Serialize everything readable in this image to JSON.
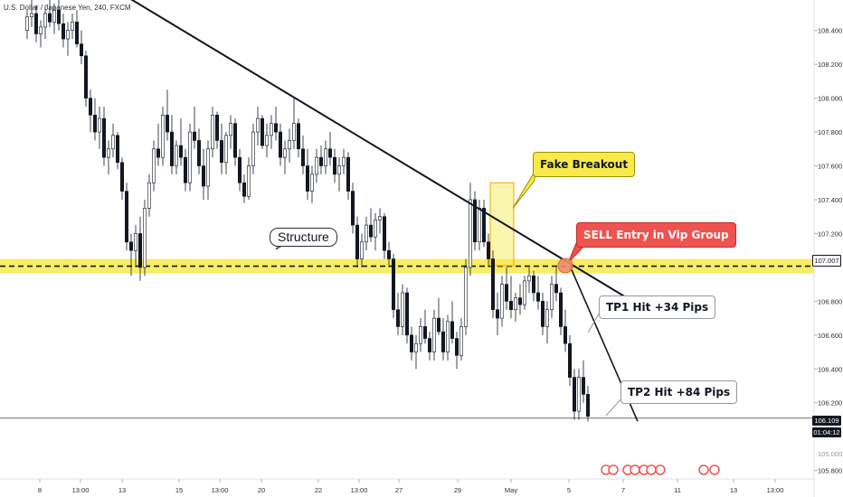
{
  "symbol_title": "U.S. Dollar / Japanese Yen, 240, FXCM",
  "chart_data": {
    "type": "candlestick",
    "ylim": [
      105.75,
      108.58
    ],
    "y_ticks": [
      "108.400",
      "108.200",
      "108.000",
      "107.800",
      "107.600",
      "107.400",
      "107.200",
      "106.800",
      "106.600",
      "106.400",
      "106.200",
      "105.800"
    ],
    "x_ticks": [
      "8",
      "13:00",
      "13",
      "15",
      "13:00",
      "20",
      "22",
      "13:00",
      "27",
      "29",
      "May",
      "5",
      "7",
      "11",
      "13",
      "13:00"
    ],
    "current_price": "106.109",
    "countdown": "01:04:12",
    "partial_price_label": "105.000",
    "structure_level": {
      "price": "107.007",
      "label": "Structure",
      "color": "#f7ea4a"
    },
    "fake_breakout_zone": {
      "label": "Fake Breakout",
      "from_price": 107.01,
      "to_price": 107.5
    },
    "trendline": {
      "from": {
        "bar": 22,
        "price": 108.6
      },
      "to": {
        "bar": 132,
        "price": 106.83
      }
    },
    "tp_line": {
      "from": {
        "bar": 120,
        "price": 107.01
      },
      "to": {
        "bar": 135,
        "price": 106.09
      }
    },
    "sell_entry": {
      "bar": 119,
      "price": 107.01,
      "label": "SELL Entry in Vip Group"
    },
    "tp1": {
      "label": "TP1 Hit +34 Pips",
      "price": 106.67
    },
    "tp2": {
      "label": "TP2 Hit +84 Pips",
      "price": 106.17
    },
    "candles": [
      [
        108.4,
        108.52,
        108.35,
        108.48
      ],
      [
        108.48,
        108.58,
        108.42,
        108.5
      ],
      [
        108.5,
        108.55,
        108.33,
        108.38
      ],
      [
        108.38,
        108.46,
        108.3,
        108.42
      ],
      [
        108.42,
        108.55,
        108.35,
        108.5
      ],
      [
        108.5,
        108.58,
        108.42,
        108.45
      ],
      [
        108.45,
        108.56,
        108.38,
        108.52
      ],
      [
        108.52,
        108.58,
        108.4,
        108.44
      ],
      [
        108.44,
        108.5,
        108.3,
        108.35
      ],
      [
        108.35,
        108.45,
        108.25,
        108.4
      ],
      [
        108.4,
        108.5,
        108.35,
        108.45
      ],
      [
        108.45,
        108.52,
        108.3,
        108.32
      ],
      [
        108.32,
        108.4,
        108.2,
        108.25
      ],
      [
        108.25,
        108.28,
        107.95,
        108.0
      ],
      [
        108.0,
        108.05,
        107.8,
        107.9
      ],
      [
        107.9,
        108.0,
        107.75,
        107.8
      ],
      [
        107.8,
        107.95,
        107.7,
        107.88
      ],
      [
        107.88,
        107.95,
        107.6,
        107.65
      ],
      [
        107.65,
        107.75,
        107.55,
        107.7
      ],
      [
        107.7,
        107.85,
        107.65,
        107.78
      ],
      [
        107.78,
        107.8,
        107.58,
        107.62
      ],
      [
        107.62,
        107.65,
        107.4,
        107.45
      ],
      [
        107.45,
        107.5,
        107.1,
        107.15
      ],
      [
        107.15,
        107.2,
        106.95,
        107.1
      ],
      [
        107.1,
        107.25,
        107.0,
        107.2
      ],
      [
        107.2,
        107.3,
        106.92,
        107.0
      ],
      [
        107.0,
        107.4,
        106.95,
        107.35
      ],
      [
        107.35,
        107.55,
        107.3,
        107.5
      ],
      [
        107.5,
        107.75,
        107.45,
        107.7
      ],
      [
        107.7,
        107.85,
        107.6,
        107.65
      ],
      [
        107.65,
        107.95,
        107.6,
        107.9
      ],
      [
        107.9,
        108.05,
        107.75,
        107.8
      ],
      [
        107.8,
        107.9,
        107.55,
        107.6
      ],
      [
        107.6,
        107.75,
        107.55,
        107.72
      ],
      [
        107.72,
        107.88,
        107.6,
        107.65
      ],
      [
        107.65,
        107.7,
        107.45,
        107.5
      ],
      [
        107.5,
        107.85,
        107.45,
        107.8
      ],
      [
        107.8,
        107.95,
        107.7,
        107.75
      ],
      [
        107.75,
        107.82,
        107.55,
        107.6
      ],
      [
        107.6,
        107.7,
        107.4,
        107.48
      ],
      [
        107.48,
        107.75,
        107.4,
        107.7
      ],
      [
        107.7,
        107.95,
        107.65,
        107.9
      ],
      [
        107.9,
        107.92,
        107.7,
        107.75
      ],
      [
        107.75,
        107.85,
        107.55,
        107.62
      ],
      [
        107.62,
        107.8,
        107.55,
        107.78
      ],
      [
        107.78,
        107.9,
        107.7,
        107.85
      ],
      [
        107.85,
        107.88,
        107.6,
        107.65
      ],
      [
        107.65,
        107.7,
        107.45,
        107.5
      ],
      [
        107.5,
        107.55,
        107.38,
        107.42
      ],
      [
        107.42,
        107.65,
        107.4,
        107.6
      ],
      [
        107.6,
        107.85,
        107.55,
        107.8
      ],
      [
        107.8,
        107.95,
        107.72,
        107.88
      ],
      [
        107.88,
        107.9,
        107.7,
        107.72
      ],
      [
        107.72,
        107.85,
        107.65,
        107.78
      ],
      [
        107.78,
        107.9,
        107.7,
        107.85
      ],
      [
        107.85,
        107.95,
        107.75,
        107.8
      ],
      [
        107.8,
        107.85,
        107.6,
        107.65
      ],
      [
        107.65,
        107.75,
        107.55,
        107.7
      ],
      [
        107.7,
        107.82,
        107.62,
        107.75
      ],
      [
        107.75,
        108.0,
        107.7,
        107.85
      ],
      [
        107.85,
        107.88,
        107.65,
        107.7
      ],
      [
        107.7,
        107.78,
        107.55,
        107.6
      ],
      [
        107.6,
        107.7,
        107.4,
        107.45
      ],
      [
        107.45,
        107.6,
        107.38,
        107.55
      ],
      [
        107.55,
        107.7,
        107.5,
        107.65
      ],
      [
        107.65,
        107.72,
        107.55,
        107.6
      ],
      [
        107.6,
        107.75,
        107.55,
        107.7
      ],
      [
        107.7,
        107.8,
        107.6,
        107.65
      ],
      [
        107.65,
        107.7,
        107.5,
        107.55
      ],
      [
        107.55,
        107.65,
        107.45,
        107.6
      ],
      [
        107.6,
        107.7,
        107.55,
        107.65
      ],
      [
        107.65,
        107.68,
        107.4,
        107.45
      ],
      [
        107.45,
        107.5,
        107.2,
        107.25
      ],
      [
        107.25,
        107.3,
        107.0,
        107.05
      ],
      [
        107.05,
        107.2,
        107.0,
        107.15
      ],
      [
        107.15,
        107.3,
        107.1,
        107.25
      ],
      [
        107.25,
        107.35,
        107.15,
        107.18
      ],
      [
        107.18,
        107.32,
        107.1,
        107.28
      ],
      [
        107.28,
        107.35,
        107.2,
        107.3
      ],
      [
        107.3,
        107.32,
        107.05,
        107.1
      ],
      [
        107.1,
        107.15,
        107.0,
        107.05
      ],
      [
        107.05,
        107.08,
        106.7,
        106.75
      ],
      [
        106.75,
        106.85,
        106.6,
        106.65
      ],
      [
        106.65,
        106.9,
        106.6,
        106.85
      ],
      [
        106.85,
        106.88,
        106.55,
        106.6
      ],
      [
        106.6,
        106.65,
        106.45,
        106.5
      ],
      [
        106.5,
        106.6,
        106.4,
        106.55
      ],
      [
        106.55,
        106.7,
        106.5,
        106.65
      ],
      [
        106.65,
        106.75,
        106.55,
        106.58
      ],
      [
        106.58,
        106.62,
        106.45,
        106.5
      ],
      [
        106.5,
        106.75,
        106.45,
        106.7
      ],
      [
        106.7,
        106.82,
        106.6,
        106.62
      ],
      [
        106.62,
        106.7,
        106.45,
        106.5
      ],
      [
        106.5,
        106.72,
        106.45,
        106.68
      ],
      [
        106.68,
        106.8,
        106.55,
        106.58
      ],
      [
        106.58,
        106.62,
        106.4,
        106.48
      ],
      [
        106.48,
        106.7,
        106.45,
        106.65
      ],
      [
        106.65,
        107.05,
        106.6,
        107.0
      ],
      [
        107.0,
        107.5,
        106.95,
        107.4
      ],
      [
        107.4,
        107.45,
        107.1,
        107.15
      ],
      [
        107.15,
        107.4,
        107.1,
        107.35
      ],
      [
        107.35,
        107.4,
        107.12,
        107.15
      ],
      [
        107.15,
        107.2,
        107.0,
        107.05
      ],
      [
        107.05,
        107.1,
        106.7,
        106.75
      ],
      [
        106.75,
        106.85,
        106.6,
        106.7
      ],
      [
        106.7,
        106.95,
        106.65,
        106.9
      ],
      [
        106.9,
        107.0,
        106.75,
        106.8
      ],
      [
        106.8,
        106.95,
        106.7,
        106.75
      ],
      [
        106.75,
        106.85,
        106.68,
        106.82
      ],
      [
        106.82,
        106.9,
        106.72,
        106.78
      ],
      [
        106.78,
        106.95,
        106.75,
        106.92
      ],
      [
        106.92,
        107.0,
        106.85,
        106.95
      ],
      [
        106.95,
        106.98,
        106.8,
        106.85
      ],
      [
        106.85,
        106.95,
        106.75,
        106.8
      ],
      [
        106.8,
        106.85,
        106.6,
        106.65
      ],
      [
        106.65,
        106.8,
        106.55,
        106.75
      ],
      [
        106.75,
        106.95,
        106.7,
        106.9
      ],
      [
        106.9,
        107.0,
        106.8,
        106.85
      ],
      [
        106.85,
        106.88,
        106.6,
        106.65
      ],
      [
        106.65,
        106.75,
        106.5,
        106.55
      ],
      [
        106.55,
        106.6,
        106.3,
        106.35
      ],
      [
        106.35,
        106.4,
        106.1,
        106.15
      ],
      [
        106.15,
        106.4,
        106.1,
        106.35
      ],
      [
        106.35,
        106.45,
        106.2,
        106.25
      ],
      [
        106.25,
        106.3,
        106.09,
        106.12
      ]
    ]
  }
}
